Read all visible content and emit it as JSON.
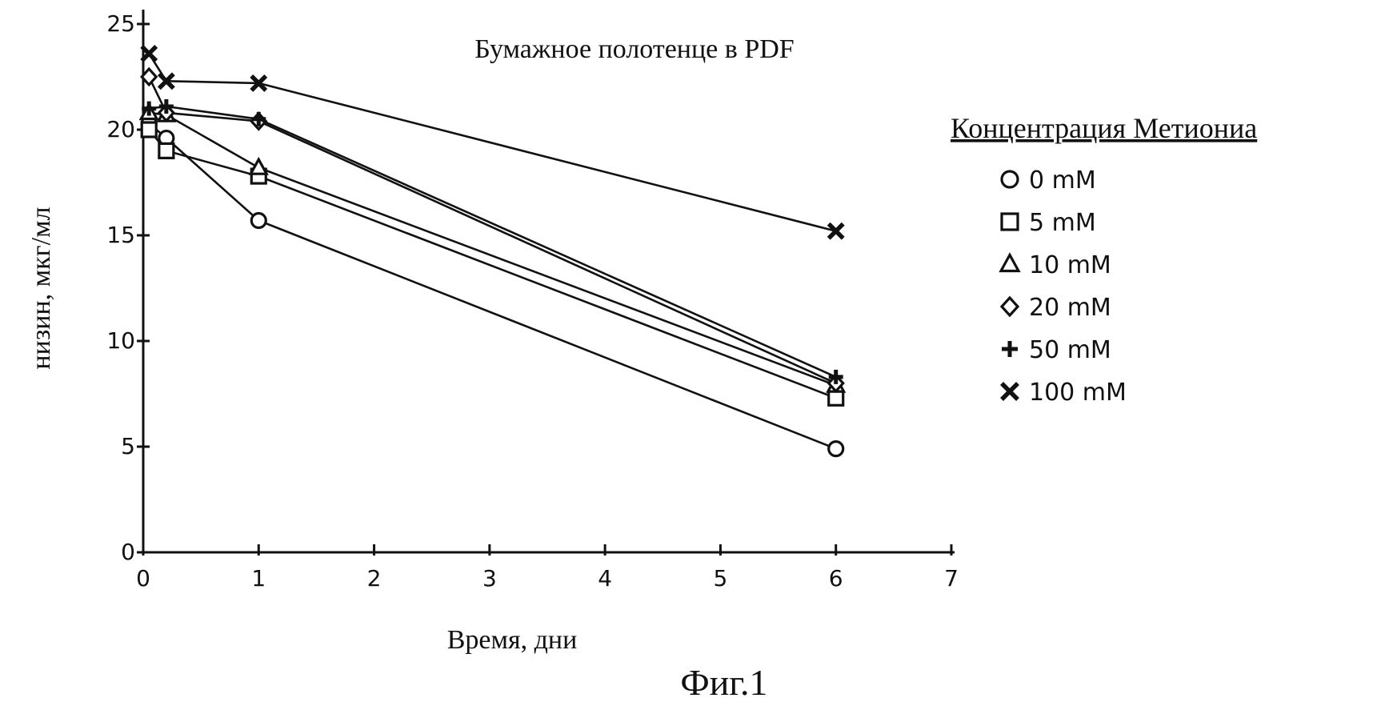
{
  "chart_data": {
    "type": "line",
    "title": "Бумажное полотенце в PDF",
    "xlabel": "Время, дни",
    "ylabel": "низин, мкг/мл",
    "xlim": [
      0,
      7
    ],
    "ylim": [
      0,
      25
    ],
    "xticks": [
      0,
      1,
      2,
      3,
      4,
      5,
      6,
      7
    ],
    "yticks": [
      0,
      5,
      10,
      15,
      20,
      25
    ],
    "grid": false,
    "legend_title": "Концентрация Метиониа",
    "legend_position": "right",
    "series": [
      {
        "name": "0 mM",
        "marker": "circle",
        "x": [
          0.05,
          0.2,
          1,
          6
        ],
        "y": [
          20.3,
          19.6,
          15.7,
          4.9
        ]
      },
      {
        "name": "5 mM",
        "marker": "square",
        "x": [
          0.05,
          0.2,
          1,
          6
        ],
        "y": [
          20.0,
          19.0,
          17.8,
          7.3
        ]
      },
      {
        "name": "10 mM",
        "marker": "triangle",
        "x": [
          0.05,
          0.2,
          1,
          6
        ],
        "y": [
          20.8,
          20.7,
          18.2,
          7.9
        ]
      },
      {
        "name": "20 mM",
        "marker": "diamond",
        "x": [
          0.05,
          0.2,
          1,
          6
        ],
        "y": [
          22.5,
          20.8,
          20.4,
          8.0
        ]
      },
      {
        "name": "50 mM",
        "marker": "plus",
        "x": [
          0.05,
          0.2,
          1,
          6
        ],
        "y": [
          21.0,
          21.1,
          20.5,
          8.3
        ]
      },
      {
        "name": "100 mM",
        "marker": "x",
        "x": [
          0.05,
          0.2,
          1,
          6
        ],
        "y": [
          23.6,
          22.3,
          22.2,
          15.2
        ]
      }
    ]
  },
  "caption": "Фиг.1",
  "colors": {
    "ink": "#111111",
    "background": "#ffffff"
  }
}
